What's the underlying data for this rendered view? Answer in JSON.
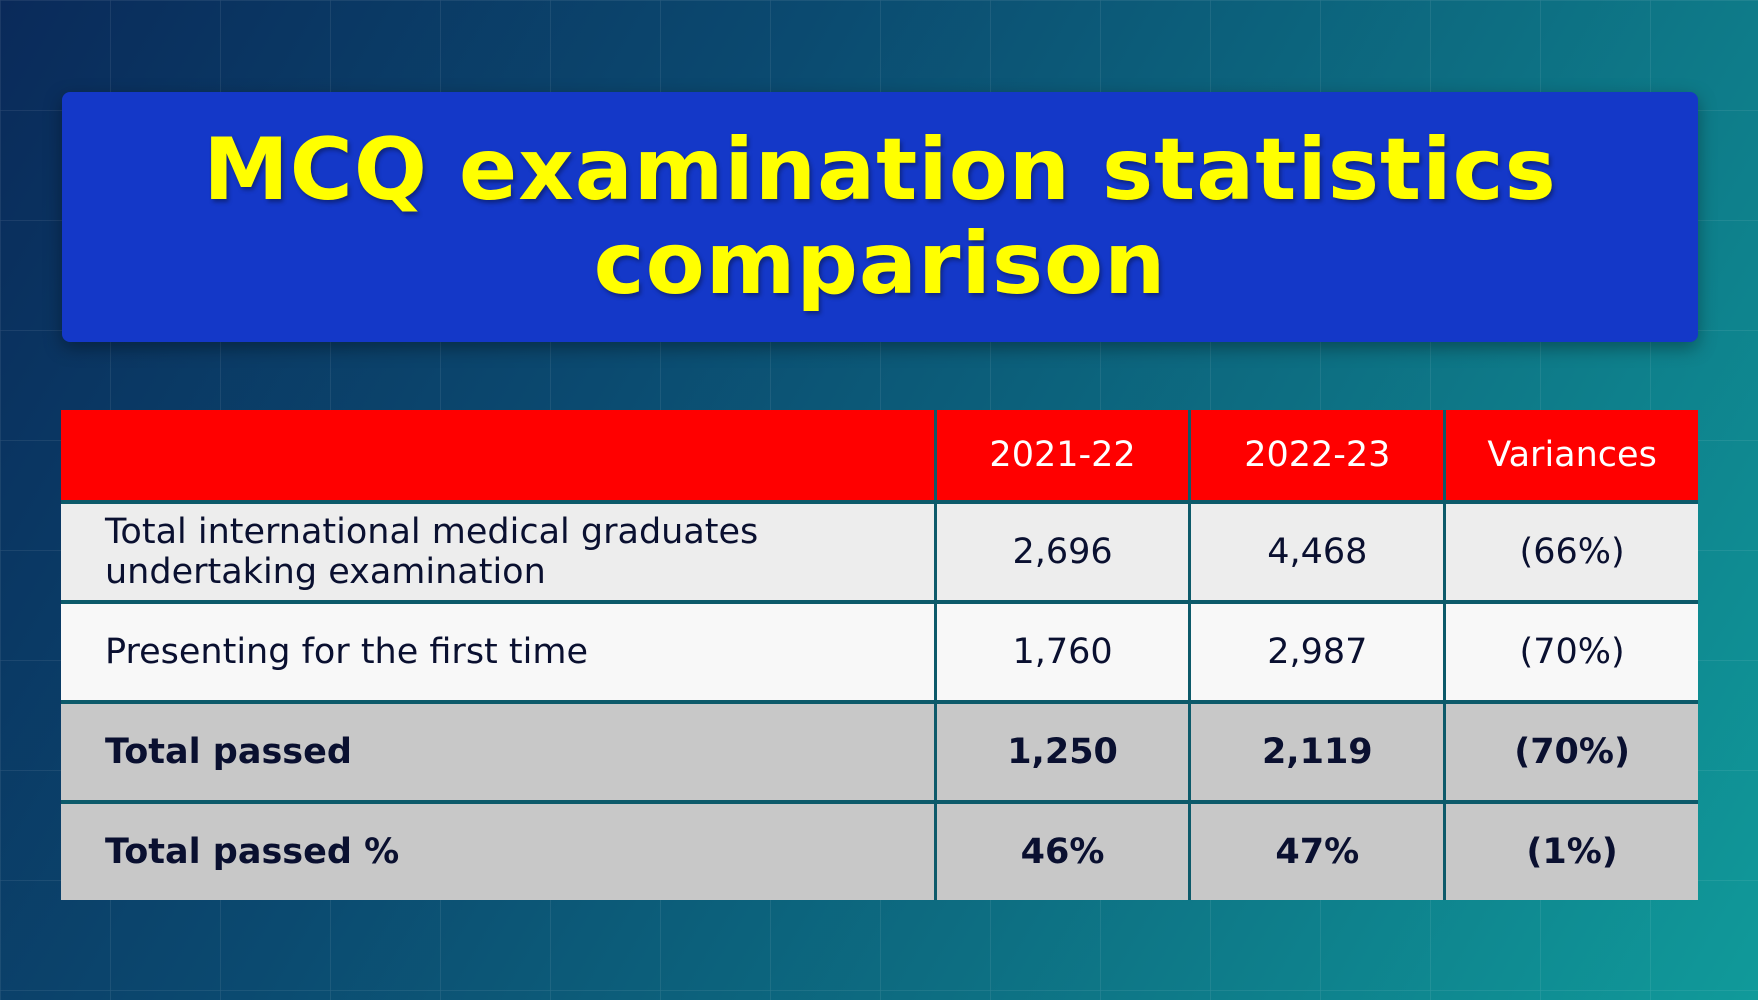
{
  "title": "MCQ examination statistics comparison",
  "table": {
    "headers": [
      "",
      "2021-22",
      "2022-23",
      "Variances"
    ],
    "rows": [
      {
        "label": "Total international medical graduates undertaking examination",
        "y2021": "2,696",
        "y2022": "4,468",
        "variance": "(66%)"
      },
      {
        "label": "Presenting for the first time",
        "y2021": "1,760",
        "y2022": "2,987",
        "variance": "(70%)"
      },
      {
        "label": "Total passed",
        "y2021": "1,250",
        "y2022": "2,119",
        "variance": "(70%)"
      },
      {
        "label": "Total passed %",
        "y2021": "46%",
        "y2022": "47%",
        "variance": "(1%)"
      }
    ]
  },
  "colors": {
    "title_bg": "#1438c8",
    "title_text": "#ffff00",
    "header_bg": "#ff0000"
  }
}
